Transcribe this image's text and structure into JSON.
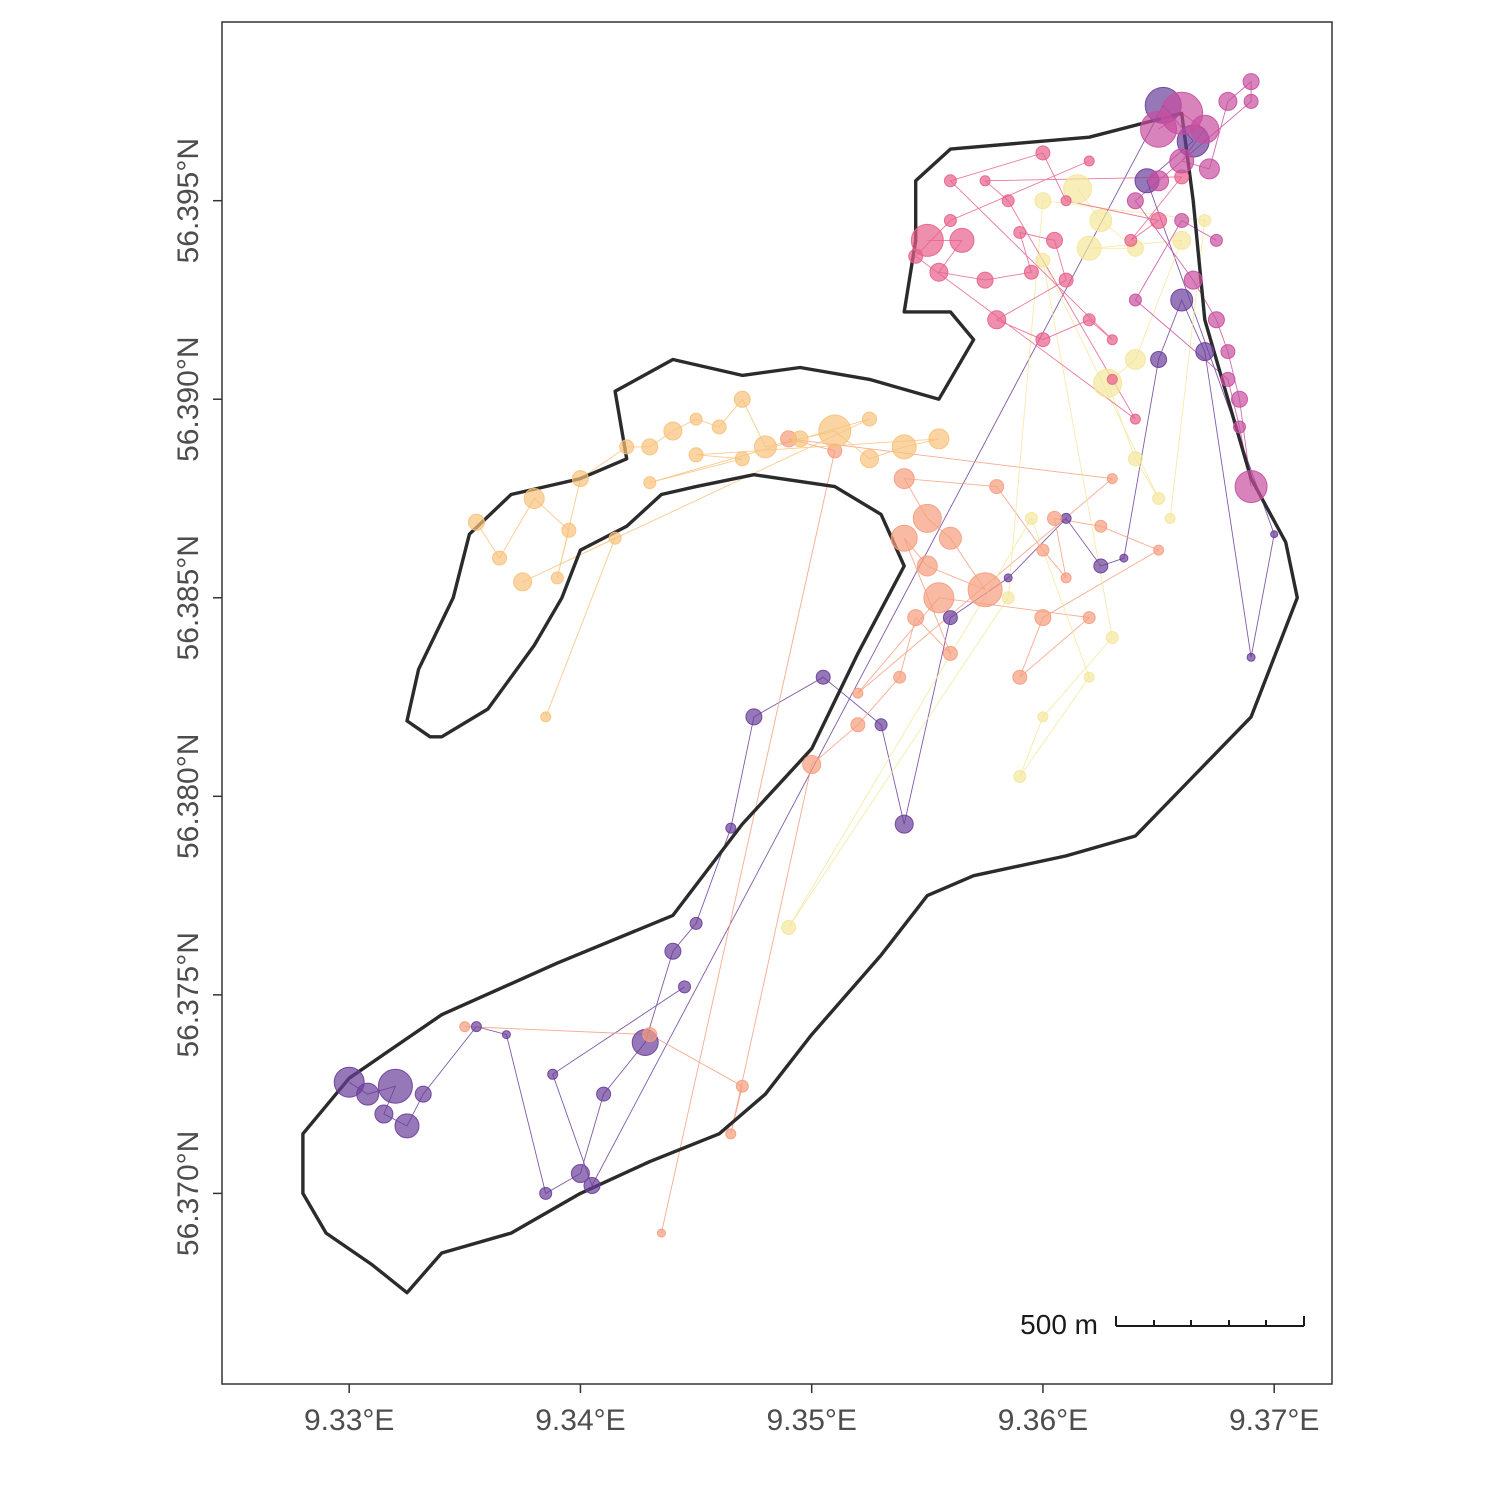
{
  "chart_data": {
    "type": "map",
    "title": "",
    "x_axis": {
      "ticks": [
        9.33,
        9.34,
        9.35,
        9.36,
        9.37
      ],
      "tick_labels": [
        "9.33°E",
        "9.34°E",
        "9.35°E",
        "9.36°E",
        "9.37°E"
      ],
      "range": [
        9.3245,
        9.3725
      ]
    },
    "y_axis": {
      "ticks": [
        56.37,
        56.375,
        56.38,
        56.385,
        56.39,
        56.395
      ],
      "tick_labels": [
        "56.370°N",
        "56.375°N",
        "56.380°N",
        "56.385°N",
        "56.390°N",
        "56.395°N"
      ],
      "range": [
        56.3652,
        56.3995
      ]
    },
    "grid": false,
    "legend": "none",
    "scale_bar": {
      "label": "500 m",
      "length_m": 500
    },
    "lake_outline": [
      [
        9.33,
        56.3729
      ],
      [
        9.334,
        56.3745
      ],
      [
        9.339,
        56.3758
      ],
      [
        9.344,
        56.377
      ],
      [
        9.347,
        56.3793
      ],
      [
        9.35,
        56.3812
      ],
      [
        9.352,
        56.3836
      ],
      [
        9.354,
        56.3858
      ],
      [
        9.353,
        56.3871
      ],
      [
        9.351,
        56.3878
      ],
      [
        9.3475,
        56.3881
      ],
      [
        9.345,
        56.3878
      ],
      [
        9.3435,
        56.3876
      ],
      [
        9.342,
        56.3868
      ],
      [
        9.34,
        56.3862
      ],
      [
        9.3392,
        56.385
      ],
      [
        9.338,
        56.3838
      ],
      [
        9.336,
        56.3822
      ],
      [
        9.334,
        56.3815
      ],
      [
        9.3335,
        56.3815
      ],
      [
        9.3325,
        56.3819
      ],
      [
        9.333,
        56.3832
      ],
      [
        9.3345,
        56.385
      ],
      [
        9.3352,
        56.3866
      ],
      [
        9.337,
        56.3876
      ],
      [
        9.34,
        56.388
      ],
      [
        9.342,
        56.3885
      ],
      [
        9.3415,
        56.3902
      ],
      [
        9.344,
        56.391
      ],
      [
        9.347,
        56.3906
      ],
      [
        9.3495,
        56.3908
      ],
      [
        9.3525,
        56.3905
      ],
      [
        9.3555,
        56.39
      ],
      [
        9.357,
        56.3915
      ],
      [
        9.356,
        56.3922
      ],
      [
        9.354,
        56.3922
      ],
      [
        9.3545,
        56.394
      ],
      [
        9.3545,
        56.3955
      ],
      [
        9.356,
        56.3963
      ],
      [
        9.362,
        56.3966
      ],
      [
        9.366,
        56.3972
      ],
      [
        9.3665,
        56.395
      ],
      [
        9.367,
        56.392
      ],
      [
        9.368,
        56.39
      ],
      [
        9.369,
        56.388
      ],
      [
        9.3705,
        56.3864
      ],
      [
        9.371,
        56.385
      ],
      [
        9.37,
        56.3835
      ],
      [
        9.369,
        56.382
      ],
      [
        9.3665,
        56.3805
      ],
      [
        9.364,
        56.379
      ],
      [
        9.361,
        56.3785
      ],
      [
        9.357,
        56.378
      ],
      [
        9.355,
        56.3775
      ],
      [
        9.353,
        56.376
      ],
      [
        9.35,
        56.374
      ],
      [
        9.348,
        56.3725
      ],
      [
        9.346,
        56.3715
      ],
      [
        9.343,
        56.3708
      ],
      [
        9.34,
        56.37
      ],
      [
        9.337,
        56.369
      ],
      [
        9.334,
        56.3685
      ],
      [
        9.3325,
        56.3675
      ],
      [
        9.331,
        56.3682
      ],
      [
        9.329,
        56.369
      ],
      [
        9.328,
        56.37
      ],
      [
        9.328,
        56.3715
      ],
      [
        9.33,
        56.3729
      ]
    ],
    "series": [
      {
        "color": "#6a3d9a",
        "points": [
          [
            9.33,
            56.3728
          ],
          [
            9.3308,
            56.3725
          ],
          [
            9.332,
            56.3727
          ],
          [
            9.3315,
            56.372
          ],
          [
            9.3325,
            56.3717
          ],
          [
            9.3332,
            56.3725
          ],
          [
            9.3355,
            56.3742
          ],
          [
            9.3368,
            56.374
          ],
          [
            9.3385,
            56.37
          ],
          [
            9.34,
            56.3705
          ],
          [
            9.341,
            56.3725
          ],
          [
            9.3428,
            56.3738
          ],
          [
            9.344,
            56.3761
          ],
          [
            9.345,
            56.3768
          ],
          [
            9.3465,
            56.3792
          ],
          [
            9.3475,
            56.382
          ],
          [
            9.3505,
            56.383
          ],
          [
            9.353,
            56.3818
          ],
          [
            9.354,
            56.3793
          ],
          [
            9.356,
            56.3845
          ],
          [
            9.3585,
            56.3855
          ],
          [
            9.361,
            56.387
          ],
          [
            9.3625,
            56.3858
          ],
          [
            9.3635,
            56.386
          ],
          [
            9.365,
            56.391
          ],
          [
            9.366,
            56.3925
          ],
          [
            9.367,
            56.3912
          ],
          [
            9.369,
            56.3835
          ],
          [
            9.37,
            56.3866
          ],
          [
            9.3645,
            56.3955
          ],
          [
            9.3665,
            56.3965
          ],
          [
            9.3652,
            56.3974
          ],
          [
            9.3405,
            56.3702
          ],
          [
            9.3388,
            56.373
          ],
          [
            9.3445,
            56.3752
          ]
        ],
        "sizes": [
          28,
          20,
          32,
          16,
          22,
          14,
          8,
          6,
          10,
          16,
          12,
          24,
          14,
          10,
          8,
          14,
          12,
          10,
          16,
          12,
          6,
          8,
          12,
          6,
          14,
          20,
          16,
          6,
          5,
          22,
          30,
          34,
          14,
          8,
          10
        ]
      },
      {
        "color": "#f79c7e",
        "points": [
          [
            9.335,
            56.3742
          ],
          [
            9.343,
            56.374
          ],
          [
            9.347,
            56.3727
          ],
          [
            9.3465,
            56.3715
          ],
          [
            9.35,
            56.3808
          ],
          [
            9.352,
            56.3818
          ],
          [
            9.3538,
            56.383
          ],
          [
            9.3545,
            56.3845
          ],
          [
            9.356,
            56.3836
          ],
          [
            9.354,
            56.3865
          ],
          [
            9.355,
            56.3858
          ],
          [
            9.3575,
            56.3852
          ],
          [
            9.356,
            56.3865
          ],
          [
            9.355,
            56.387
          ],
          [
            9.354,
            56.388
          ],
          [
            9.358,
            56.3878
          ],
          [
            9.36,
            56.3862
          ],
          [
            9.361,
            56.3855
          ],
          [
            9.3605,
            56.387
          ],
          [
            9.3625,
            56.3868
          ],
          [
            9.365,
            56.3862
          ],
          [
            9.36,
            56.3845
          ],
          [
            9.359,
            56.383
          ],
          [
            9.362,
            56.3845
          ],
          [
            9.3555,
            56.385
          ],
          [
            9.352,
            56.3826
          ],
          [
            9.363,
            56.388
          ],
          [
            9.349,
            56.389
          ],
          [
            9.351,
            56.3887
          ],
          [
            9.3435,
            56.369
          ]
        ],
        "sizes": [
          8,
          12,
          10,
          8,
          16,
          12,
          10,
          14,
          12,
          24,
          18,
          32,
          20,
          26,
          18,
          12,
          10,
          8,
          12,
          10,
          8,
          14,
          12,
          10,
          28,
          8,
          8,
          14,
          12,
          6
        ]
      },
      {
        "color": "#f8c27a",
        "points": [
          [
            9.3355,
            56.3869
          ],
          [
            9.3365,
            56.386
          ],
          [
            9.338,
            56.3875
          ],
          [
            9.3395,
            56.3867
          ],
          [
            9.339,
            56.3855
          ],
          [
            9.34,
            56.388
          ],
          [
            9.342,
            56.3888
          ],
          [
            9.343,
            56.3888
          ],
          [
            9.344,
            56.3892
          ],
          [
            9.345,
            56.3895
          ],
          [
            9.346,
            56.3893
          ],
          [
            9.347,
            56.39
          ],
          [
            9.348,
            56.3888
          ],
          [
            9.3495,
            56.389
          ],
          [
            9.351,
            56.3892
          ],
          [
            9.3525,
            56.3885
          ],
          [
            9.354,
            56.3888
          ],
          [
            9.3555,
            56.389
          ],
          [
            9.345,
            56.3886
          ],
          [
            9.347,
            56.3885
          ],
          [
            9.343,
            56.3879
          ],
          [
            9.3525,
            56.3895
          ],
          [
            9.3375,
            56.3854
          ],
          [
            9.3415,
            56.3865
          ],
          [
            9.3385,
            56.382
          ]
        ],
        "sizes": [
          14,
          12,
          18,
          12,
          10,
          14,
          12,
          14,
          16,
          10,
          12,
          14,
          20,
          14,
          30,
          16,
          22,
          18,
          12,
          12,
          10,
          12,
          16,
          10,
          8
        ]
      },
      {
        "color": "#f3e79b",
        "points": [
          [
            9.3615,
            56.3953
          ],
          [
            9.3625,
            56.3945
          ],
          [
            9.364,
            56.3938
          ],
          [
            9.362,
            56.3938
          ],
          [
            9.366,
            56.394
          ],
          [
            9.364,
            56.391
          ],
          [
            9.3628,
            56.3904
          ],
          [
            9.364,
            56.3885
          ],
          [
            9.365,
            56.3875
          ],
          [
            9.36,
            56.3935
          ],
          [
            9.363,
            56.384
          ],
          [
            9.36,
            56.382
          ],
          [
            9.359,
            56.3805
          ],
          [
            9.362,
            56.383
          ],
          [
            9.3595,
            56.387
          ],
          [
            9.349,
            56.3767
          ],
          [
            9.3585,
            56.385
          ],
          [
            9.36,
            56.395
          ],
          [
            9.367,
            56.3945
          ],
          [
            9.3655,
            56.387
          ]
        ],
        "sizes": [
          26,
          20,
          14,
          22,
          16,
          18,
          26,
          12,
          10,
          12,
          10,
          8,
          10,
          8,
          10,
          12,
          10,
          14,
          10,
          8
        ]
      },
      {
        "color": "#e8608c",
        "points": [
          [
            9.355,
            56.394
          ],
          [
            9.3565,
            56.394
          ],
          [
            9.3555,
            56.3932
          ],
          [
            9.3575,
            56.393
          ],
          [
            9.3595,
            56.3932
          ],
          [
            9.359,
            56.3942
          ],
          [
            9.3605,
            56.394
          ],
          [
            9.361,
            56.393
          ],
          [
            9.358,
            56.392
          ],
          [
            9.36,
            56.3915
          ],
          [
            9.362,
            56.392
          ],
          [
            9.363,
            56.3915
          ],
          [
            9.356,
            56.3955
          ],
          [
            9.36,
            56.3962
          ],
          [
            9.361,
            56.395
          ],
          [
            9.365,
            56.3945
          ],
          [
            9.3638,
            56.394
          ],
          [
            9.366,
            56.3956
          ],
          [
            9.3575,
            56.3955
          ],
          [
            9.3585,
            56.395
          ],
          [
            9.363,
            56.3905
          ],
          [
            9.364,
            56.3895
          ],
          [
            9.3545,
            56.3936
          ],
          [
            9.356,
            56.3945
          ],
          [
            9.362,
            56.396
          ]
        ],
        "sizes": [
          30,
          22,
          16,
          14,
          12,
          10,
          14,
          12,
          16,
          12,
          10,
          8,
          10,
          12,
          8,
          14,
          10,
          12,
          8,
          10,
          8,
          8,
          12,
          10,
          8
        ]
      },
      {
        "color": "#c84f9e",
        "points": [
          [
            9.365,
            56.3968
          ],
          [
            9.366,
            56.3972
          ],
          [
            9.367,
            56.3968
          ],
          [
            9.366,
            56.396
          ],
          [
            9.3672,
            56.3958
          ],
          [
            9.368,
            56.3975
          ],
          [
            9.369,
            56.398
          ],
          [
            9.369,
            56.3975
          ],
          [
            9.365,
            56.3955
          ],
          [
            9.364,
            56.395
          ],
          [
            9.3665,
            56.393
          ],
          [
            9.3675,
            56.392
          ],
          [
            9.368,
            56.3912
          ],
          [
            9.3685,
            56.39
          ],
          [
            9.369,
            56.3878
          ],
          [
            9.3685,
            56.3893
          ],
          [
            9.368,
            56.3905
          ],
          [
            9.364,
            56.3925
          ],
          [
            9.366,
            56.3945
          ],
          [
            9.3675,
            56.394
          ]
        ],
        "sizes": [
          34,
          40,
          26,
          22,
          18,
          16,
          14,
          12,
          18,
          14,
          16,
          14,
          12,
          14,
          30,
          10,
          12,
          10,
          12,
          10
        ]
      }
    ]
  }
}
